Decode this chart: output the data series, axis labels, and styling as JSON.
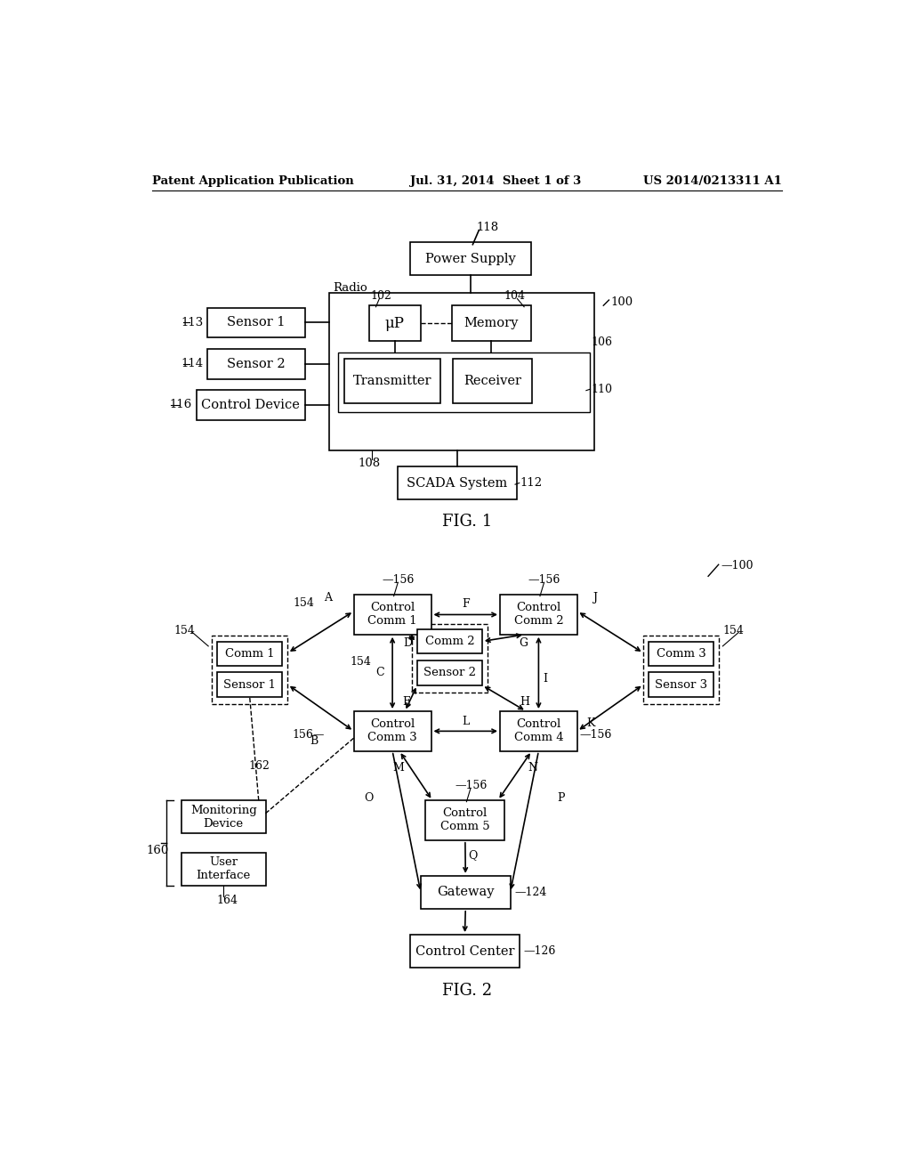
{
  "header_left": "Patent Application Publication",
  "header_mid": "Jul. 31, 2014  Sheet 1 of 3",
  "header_right": "US 2014/0213311 A1",
  "fig1_title": "FIG. 1",
  "fig2_title": "FIG. 2",
  "background": "#ffffff"
}
